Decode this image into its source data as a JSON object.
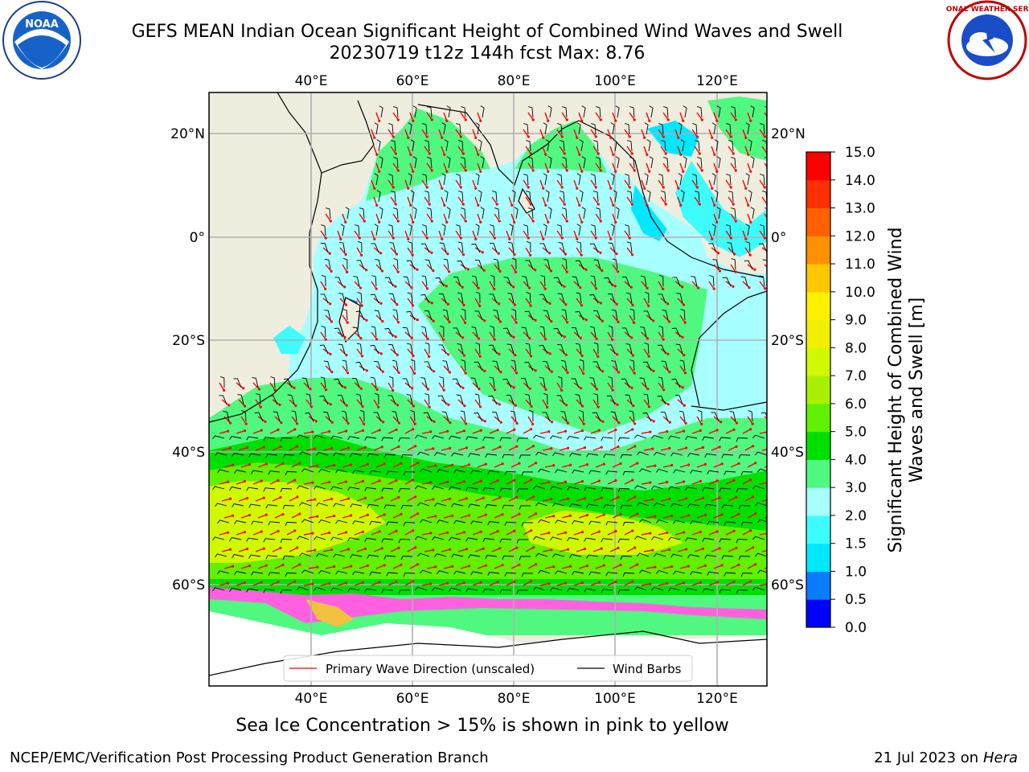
{
  "title": {
    "line1": "GEFS MEAN Indian Ocean Significant Height of Combined Wind Waves and Swell",
    "line2": "20230719 t12z 144h fcst   Max: 8.76"
  },
  "logos": {
    "left": "NOAA",
    "right": "NATIONAL WEATHER SERVICE"
  },
  "map": {
    "lon_ticks": [
      "40°E",
      "60°E",
      "80°E",
      "100°E",
      "120°E"
    ],
    "lat_ticks": [
      "20°N",
      "0°",
      "20°S",
      "40°S",
      "60°S"
    ],
    "extent": {
      "lon": [
        20,
        130
      ],
      "lat": [
        -75,
        27
      ]
    }
  },
  "legend": {
    "wave_direction": "Primary Wave Direction (unscaled)",
    "wind_barbs": "Wind Barbs"
  },
  "colorbar": {
    "label": "Significant Height of Combined Wind Waves and Swell [m]",
    "ticks": [
      "0.0",
      "0.5",
      "1.0",
      "1.5",
      "2.0",
      "3.0",
      "4.0",
      "5.0",
      "6.0",
      "7.0",
      "8.0",
      "9.0",
      "10.0",
      "11.0",
      "12.0",
      "13.0",
      "14.0",
      "15.0"
    ],
    "colors": [
      "#0000ff",
      "#0a7cff",
      "#00e8ff",
      "#3dfcfc",
      "#a8ffff",
      "#50f880",
      "#00e000",
      "#60f000",
      "#a8f000",
      "#d0f800",
      "#f0f000",
      "#fff000",
      "#ffc800",
      "#ff9000",
      "#ff6000",
      "#ff3000",
      "#ff0000"
    ]
  },
  "caption": "Sea Ice Concentration > 15% is shown in pink to yellow",
  "credit_left": "NCEP/EMC/Verification Post Processing Product Generation Branch",
  "credit_right_date": "21 Jul 2023 on ",
  "credit_right_host": "Hera"
}
